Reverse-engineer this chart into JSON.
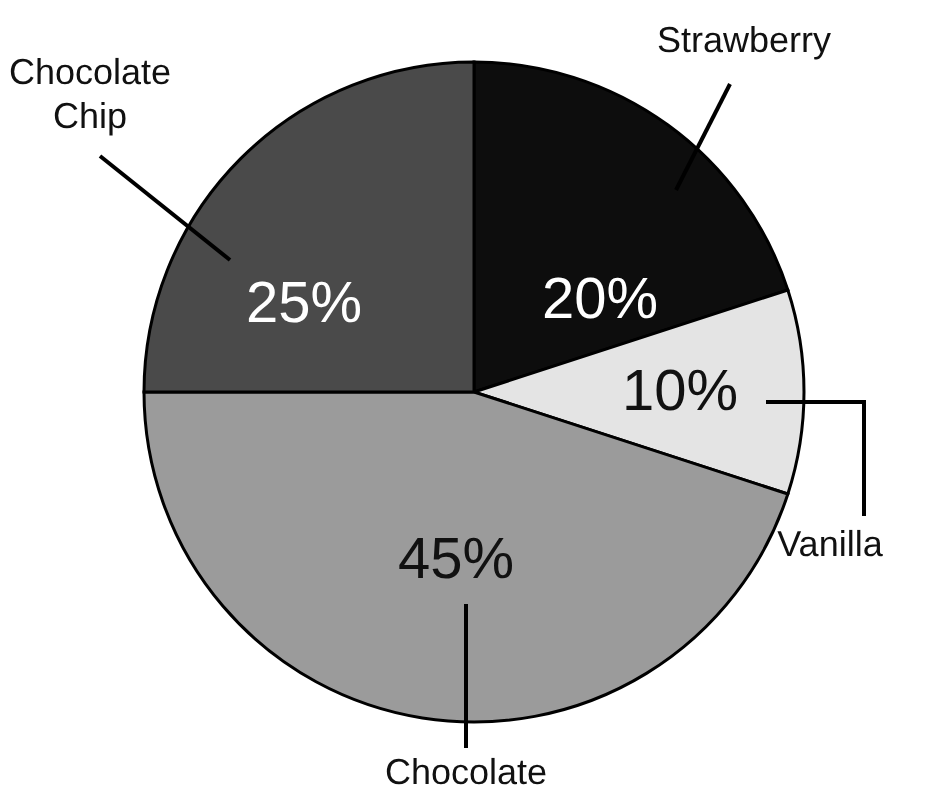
{
  "chart_data": {
    "type": "pie",
    "categories": [
      "Strawberry",
      "Vanilla",
      "Chocolate",
      "Chocolate Chip"
    ],
    "values": [
      20,
      10,
      45,
      25
    ],
    "colors": [
      "#0d0d0d",
      "#e4e4e4",
      "#9b9b9b",
      "#4a4a4a"
    ],
    "value_labels": [
      "20%",
      "10%",
      "45%",
      "25%"
    ]
  }
}
